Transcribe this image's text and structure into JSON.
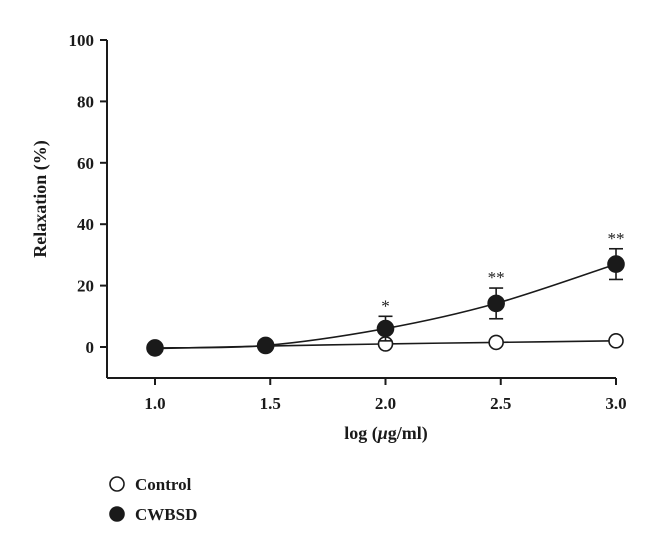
{
  "chart_data": {
    "type": "line",
    "title": "",
    "xlabel_prefix": "log (",
    "xlabel_mu": "μ",
    "xlabel_suffix": "g/ml)",
    "ylabel": "Relaxation (%)",
    "xlim": [
      1.0,
      3.0
    ],
    "ylim": [
      0,
      100
    ],
    "x_ticks": [
      "1.0",
      "1.5",
      "2.0",
      "2.5",
      "3.0"
    ],
    "y_ticks": [
      "0",
      "20",
      "40",
      "60",
      "80",
      "100"
    ],
    "x": [
      1.0,
      1.48,
      2.0,
      2.48,
      3.0
    ],
    "legend_position": "bottom-left",
    "series": [
      {
        "name": "Control",
        "marker": "open-circle",
        "values": [
          -0.5,
          0.3,
          1.0,
          1.5,
          2.0
        ],
        "errors": [
          0,
          0,
          0,
          0,
          0
        ]
      },
      {
        "name": "CWBSD",
        "marker": "filled-circle",
        "values": [
          -0.3,
          0.5,
          6.0,
          14.2,
          27.0
        ],
        "errors": [
          0,
          0,
          4.0,
          5.0,
          5.0
        ],
        "significance": [
          "",
          "",
          "*",
          "**",
          "**"
        ]
      }
    ],
    "colors": {
      "line": "#1a1a1a",
      "marker_fill": "#1a1a1a",
      "background": "#ffffff"
    }
  }
}
